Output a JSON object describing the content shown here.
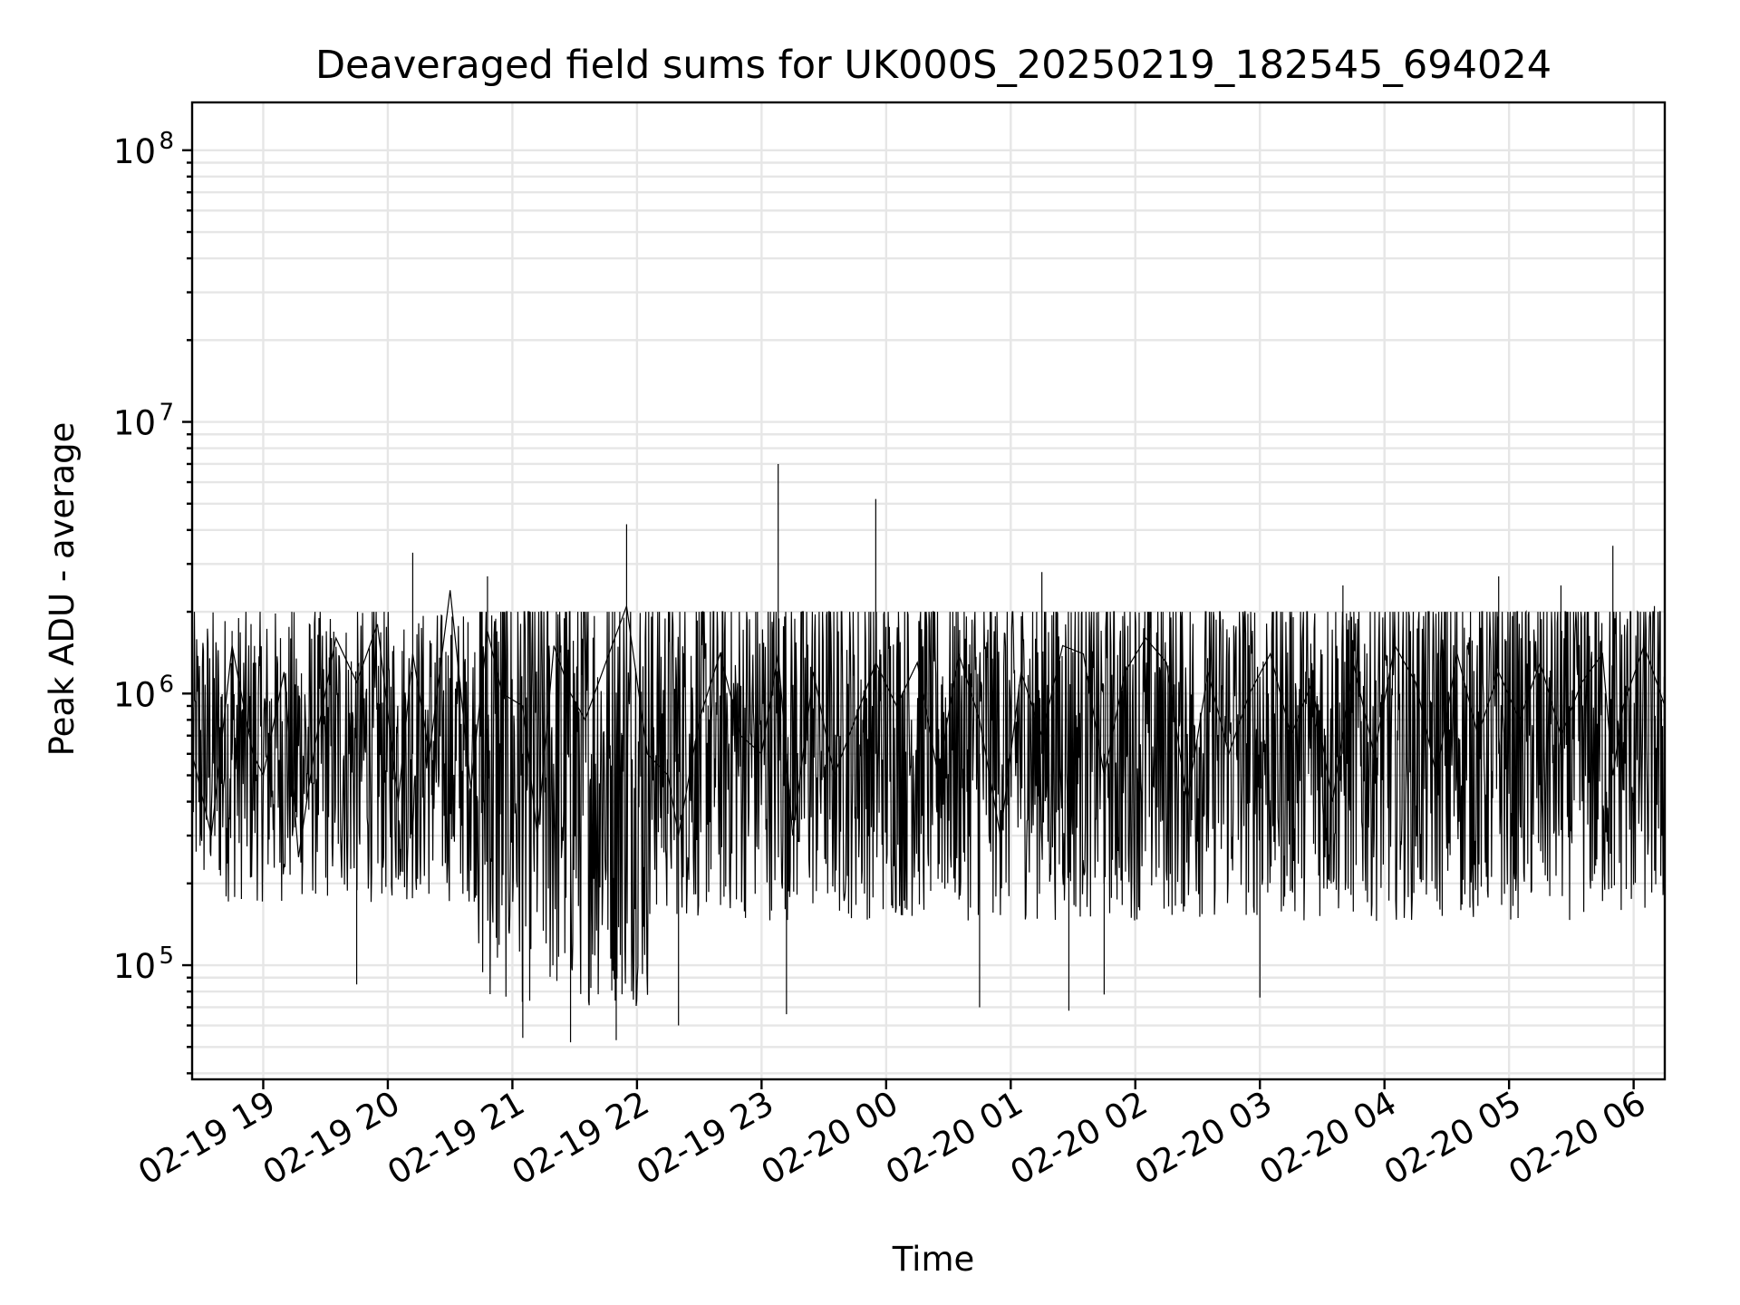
{
  "chart_data": {
    "type": "line",
    "title": "Deaveraged field sums for UK000S_20250219_182545_694024",
    "xlabel": "Time",
    "ylabel": "Peak ADU - average",
    "x_axis": {
      "kind": "datetime",
      "min": "2025-02-19T18:25:45",
      "max": "2025-02-20T06:15:00",
      "ticks": [
        {
          "value": "2025-02-19T19:00:00",
          "label": "02-19 19"
        },
        {
          "value": "2025-02-19T20:00:00",
          "label": "02-19 20"
        },
        {
          "value": "2025-02-19T21:00:00",
          "label": "02-19 21"
        },
        {
          "value": "2025-02-19T22:00:00",
          "label": "02-19 22"
        },
        {
          "value": "2025-02-19T23:00:00",
          "label": "02-19 23"
        },
        {
          "value": "2025-02-20T00:00:00",
          "label": "02-20 00"
        },
        {
          "value": "2025-02-20T01:00:00",
          "label": "02-20 01"
        },
        {
          "value": "2025-02-20T02:00:00",
          "label": "02-20 02"
        },
        {
          "value": "2025-02-20T03:00:00",
          "label": "02-20 03"
        },
        {
          "value": "2025-02-20T04:00:00",
          "label": "02-20 04"
        },
        {
          "value": "2025-02-20T05:00:00",
          "label": "02-20 05"
        },
        {
          "value": "2025-02-20T06:00:00",
          "label": "02-20 06"
        }
      ]
    },
    "y_axis": {
      "scale": "log",
      "min": 38000,
      "max": 150000000,
      "ticks": [
        {
          "value": 100000,
          "base": "10",
          "exp": "5"
        },
        {
          "value": 1000000,
          "base": "10",
          "exp": "6"
        },
        {
          "value": 10000000,
          "base": "10",
          "exp": "7"
        },
        {
          "value": 100000000,
          "base": "10",
          "exp": "8"
        }
      ]
    },
    "grid": true,
    "series": [
      {
        "color": "#000000",
        "x": [
          "2025-02-19T18:25:45",
          "2025-02-19T18:35:00",
          "2025-02-19T18:45:00",
          "2025-02-19T18:55:00",
          "2025-02-19T19:00:00",
          "2025-02-19T19:10:00",
          "2025-02-19T19:17:00",
          "2025-02-19T19:25:00",
          "2025-02-19T19:35:00",
          "2025-02-19T19:45:00",
          "2025-02-19T19:55:00",
          "2025-02-19T20:05:00",
          "2025-02-19T20:12:00",
          "2025-02-19T20:20:00",
          "2025-02-19T20:30:00",
          "2025-02-19T20:40:00",
          "2025-02-19T20:48:00",
          "2025-02-19T20:55:00",
          "2025-02-19T21:05:00",
          "2025-02-19T21:12:00",
          "2025-02-19T21:20:00",
          "2025-02-19T21:28:00",
          "2025-02-19T21:35:00",
          "2025-02-19T21:45:00",
          "2025-02-19T21:55:00",
          "2025-02-19T22:05:00",
          "2025-02-19T22:15:00",
          "2025-02-19T22:20:00",
          "2025-02-19T22:30:00",
          "2025-02-19T22:40:00",
          "2025-02-19T22:50:00",
          "2025-02-19T23:00:00",
          "2025-02-19T23:08:00",
          "2025-02-19T23:15:00",
          "2025-02-19T23:25:00",
          "2025-02-19T23:35:00",
          "2025-02-19T23:45:00",
          "2025-02-19T23:55:00",
          "2025-02-20T00:05:00",
          "2025-02-20T00:15:00",
          "2025-02-20T00:25:00",
          "2025-02-20T00:35:00",
          "2025-02-20T00:45:00",
          "2025-02-20T00:55:00",
          "2025-02-20T01:05:00",
          "2025-02-20T01:15:00",
          "2025-02-20T01:25:00",
          "2025-02-20T01:35:00",
          "2025-02-20T01:45:00",
          "2025-02-20T01:55:00",
          "2025-02-20T02:05:00",
          "2025-02-20T02:15:00",
          "2025-02-20T02:25:00",
          "2025-02-20T02:35:00",
          "2025-02-20T02:45:00",
          "2025-02-20T02:55:00",
          "2025-02-20T03:05:00",
          "2025-02-20T03:15:00",
          "2025-02-20T03:25:00",
          "2025-02-20T03:35:00",
          "2025-02-20T03:45:00",
          "2025-02-20T03:55:00",
          "2025-02-20T04:05:00",
          "2025-02-20T04:15:00",
          "2025-02-20T04:25:00",
          "2025-02-20T04:35:00",
          "2025-02-20T04:45:00",
          "2025-02-20T04:55:00",
          "2025-02-20T05:05:00",
          "2025-02-20T05:15:00",
          "2025-02-20T05:25:00",
          "2025-02-20T05:35:00",
          "2025-02-20T05:45:00",
          "2025-02-20T05:50:00",
          "2025-02-20T05:55:00",
          "2025-02-20T06:05:00",
          "2025-02-20T06:15:00"
        ],
        "y": [
          600000,
          300000,
          1500000,
          600000,
          500000,
          1200000,
          250000,
          650000,
          1600000,
          1100000,
          1800000,
          400000,
          1400000,
          600000,
          2400000,
          450000,
          1700000,
          1000000,
          900000,
          300000,
          1500000,
          1000000,
          800000,
          1300000,
          2100000,
          600000,
          500000,
          300000,
          800000,
          1400000,
          700000,
          600000,
          1400000,
          300000,
          1200000,
          500000,
          800000,
          1300000,
          900000,
          1300000,
          500000,
          1400000,
          800000,
          300000,
          1200000,
          700000,
          1500000,
          1400000,
          500000,
          1200000,
          1600000,
          1300000,
          400000,
          1200000,
          600000,
          1000000,
          1400000,
          700000,
          1100000,
          400000,
          1300000,
          600000,
          1500000,
          1100000,
          500000,
          1400000,
          700000,
          1200000,
          800000,
          1300000,
          700000,
          1100000,
          1400000,
          500000,
          900000,
          1500000,
          900000
        ]
      }
    ],
    "extremes": [
      {
        "x": "2025-02-19T18:45:00",
        "y": 1700000
      },
      {
        "x": "2025-02-19T19:45:00",
        "y": 85000
      },
      {
        "x": "2025-02-19T20:12:00",
        "y": 3300000
      },
      {
        "x": "2025-02-19T20:48:00",
        "y": 2700000
      },
      {
        "x": "2025-02-19T21:05:00",
        "y": 54000
      },
      {
        "x": "2025-02-19T21:28:00",
        "y": 52000
      },
      {
        "x": "2025-02-19T21:50:00",
        "y": 53000
      },
      {
        "x": "2025-02-19T21:55:00",
        "y": 4200000
      },
      {
        "x": "2025-02-19T22:20:00",
        "y": 60000
      },
      {
        "x": "2025-02-19T23:08:00",
        "y": 7000000
      },
      {
        "x": "2025-02-19T23:12:00",
        "y": 66000
      },
      {
        "x": "2025-02-19T23:55:00",
        "y": 5200000
      },
      {
        "x": "2025-02-20T00:45:00",
        "y": 70000
      },
      {
        "x": "2025-02-20T01:15:00",
        "y": 2800000
      },
      {
        "x": "2025-02-20T01:28:00",
        "y": 68000
      },
      {
        "x": "2025-02-20T01:45:00",
        "y": 78000
      },
      {
        "x": "2025-02-20T03:00:00",
        "y": 76000
      },
      {
        "x": "2025-02-20T03:40:00",
        "y": 2500000
      },
      {
        "x": "2025-02-20T04:55:00",
        "y": 2700000
      },
      {
        "x": "2025-02-20T05:25:00",
        "y": 2500000
      },
      {
        "x": "2025-02-20T05:50:00",
        "y": 3500000
      },
      {
        "x": "2025-02-20T06:10:00",
        "y": 2100000
      }
    ]
  }
}
